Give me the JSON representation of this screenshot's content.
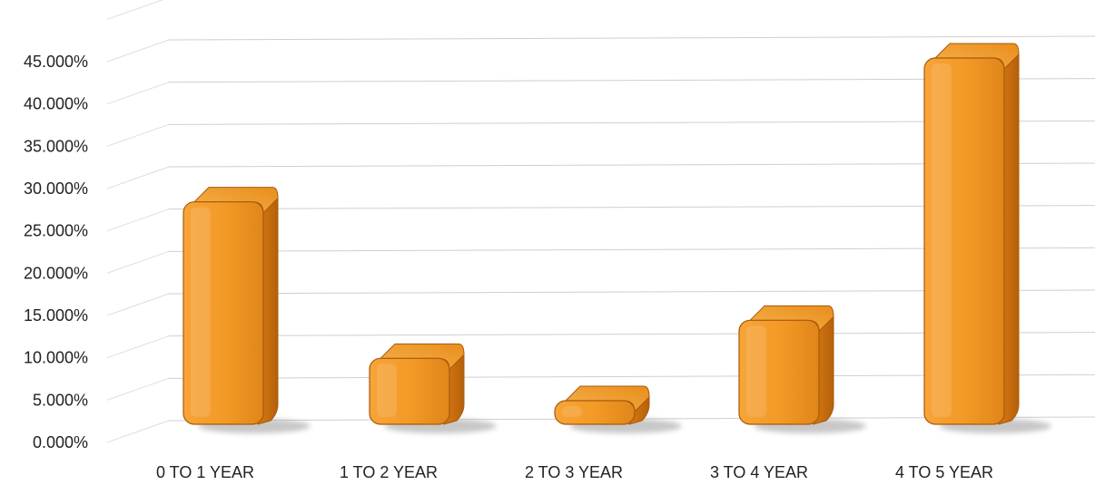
{
  "chart_data": {
    "type": "bar",
    "title": "",
    "xlabel": "",
    "ylabel": "",
    "categories": [
      "0 TO 1 YEAR",
      "1 TO 2 YEAR",
      "2 TO 3 YEAR",
      "3 TO 4 YEAR",
      "4 TO 5 YEAR"
    ],
    "values": [
      28.0,
      9.5,
      4.5,
      14.0,
      45.0
    ],
    "value_unit": "%",
    "ylim": [
      0,
      50
    ],
    "yticks": [
      "0.000%",
      "5.000%",
      "10.000%",
      "15.000%",
      "20.000%",
      "25.000%",
      "30.000%",
      "35.000%",
      "40.000%",
      "45.000%"
    ],
    "ytick_values": [
      0,
      5,
      10,
      15,
      20,
      25,
      30,
      35,
      40,
      45
    ],
    "grid": true,
    "legend": "none",
    "style": "3d-rounded-column",
    "colors": {
      "bar_front": "#F39A26",
      "bar_top": "#F7B04C",
      "bar_side": "#C96F0D",
      "bar_outline": "#A85A0A",
      "shadow": "#9a9a9a",
      "grid": "#cfcfcf",
      "text": "#222222"
    }
  }
}
